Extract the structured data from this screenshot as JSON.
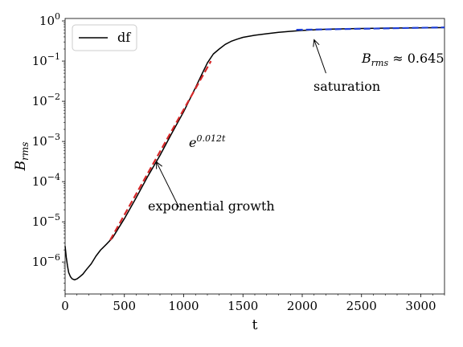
{
  "chart_data": {
    "type": "line",
    "title": "",
    "xlabel": "t",
    "ylabel_base": "B",
    "ylabel_sub": "rms",
    "xlim": [
      0,
      3200
    ],
    "ylim": [
      1.6e-07,
      1.15
    ],
    "yscale": "log",
    "x_ticks": [
      0,
      500,
      1000,
      1500,
      2000,
      2500,
      3000
    ],
    "x_tick_labels": [
      "0",
      "500",
      "1000",
      "1500",
      "2000",
      "2500",
      "3000"
    ],
    "y_ticks": [
      1e-06,
      1e-05,
      0.0001,
      0.001,
      0.01,
      0.1,
      1
    ],
    "y_tick_labels": [
      {
        "base": "10",
        "exp": "−6"
      },
      {
        "base": "10",
        "exp": "−5"
      },
      {
        "base": "10",
        "exp": "−4"
      },
      {
        "base": "10",
        "exp": "−3"
      },
      {
        "base": "10",
        "exp": "−2"
      },
      {
        "base": "10",
        "exp": "−1"
      },
      {
        "base": "10",
        "exp": "0"
      }
    ],
    "grid": false,
    "legend": {
      "position": "top-left",
      "entries": [
        "df"
      ]
    },
    "series": [
      {
        "name": "df",
        "color": "#000000",
        "style": "solid",
        "x": [
          0,
          10,
          20,
          30,
          45,
          60,
          80,
          100,
          120,
          150,
          180,
          220,
          260,
          300,
          350,
          400,
          500,
          600,
          700,
          800,
          900,
          1000,
          1100,
          1150,
          1200,
          1250,
          1300,
          1350,
          1400,
          1450,
          1500,
          1600,
          1700,
          1800,
          1900,
          2000,
          2100,
          2200,
          2400,
          2600,
          2800,
          3000,
          3200
        ],
        "y": [
          2.5e-06,
          1.3e-06,
          8e-07,
          5.5e-07,
          4.3e-07,
          3.8e-07,
          3.6e-07,
          3.8e-07,
          4.2e-07,
          5e-07,
          6.5e-07,
          9e-07,
          1.4e-06,
          2e-06,
          2.8e-06,
          4e-06,
          1.2e-05,
          4e-05,
          0.00014,
          0.00045,
          0.0016,
          0.0055,
          0.022,
          0.045,
          0.09,
          0.15,
          0.2,
          0.26,
          0.31,
          0.35,
          0.39,
          0.44,
          0.48,
          0.52,
          0.55,
          0.58,
          0.6,
          0.62,
          0.64,
          0.655,
          0.665,
          0.675,
          0.68
        ]
      },
      {
        "name": "",
        "color": "#d62728",
        "style": "dashed",
        "x": [
          380,
          1230
        ],
        "y": [
          3.5e-06,
          0.1
        ]
      },
      {
        "name": "",
        "color": "#1f3fd6",
        "style": "dashed",
        "x": [
          1950,
          3200
        ],
        "y": [
          0.6,
          0.69
        ]
      }
    ],
    "annotations": [
      {
        "text": "exponential growth",
        "arrow_from": [
          960,
          2.3e-05
        ],
        "arrow_to": [
          770,
          0.00031
        ]
      },
      {
        "text": "saturation",
        "arrow_from": [
          2200,
          0.05
        ],
        "arrow_to": [
          2100,
          0.34
        ]
      },
      {
        "text_base": "e",
        "text_exp": "0.012t"
      },
      {
        "text_base": "B",
        "text_sub": "rms",
        "text_rest": " ≈ 0.645"
      }
    ]
  }
}
